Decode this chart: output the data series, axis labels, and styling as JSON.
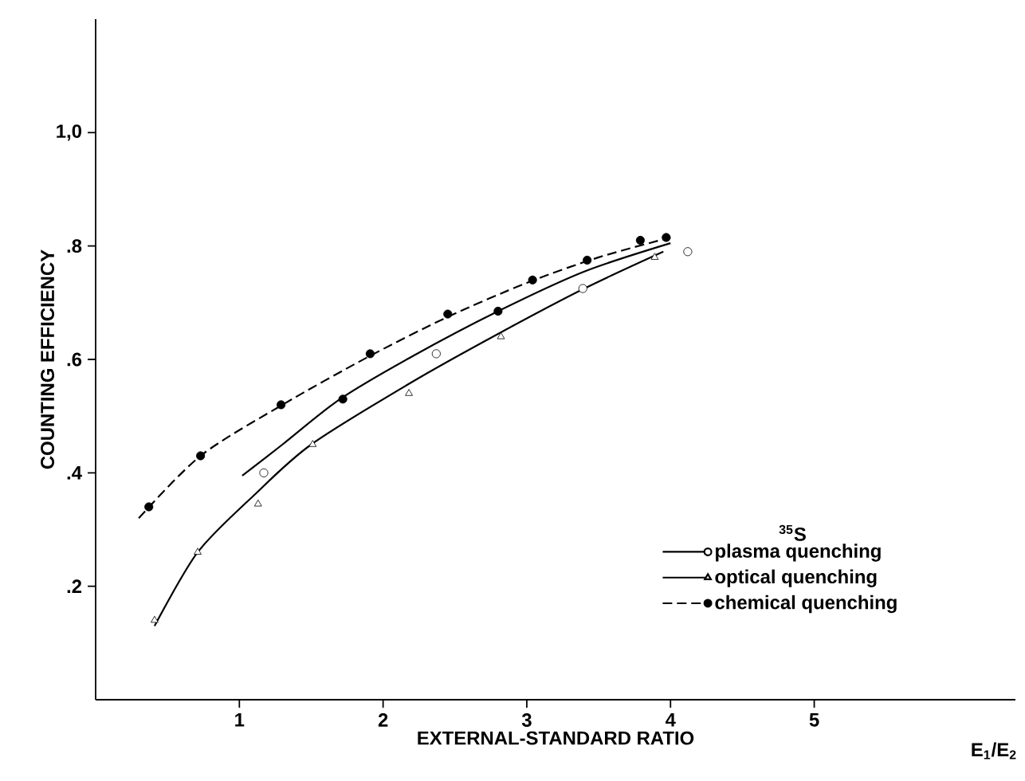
{
  "chart_data": {
    "type": "line",
    "xlabel": "EXTERNAL-STANDARD RATIO",
    "ylabel": "COUNTING EFFICIENCY",
    "legend_title": "$^{35}$S",
    "annotations": [
      "E$_{1}$/E$_{2}$"
    ],
    "xlim": [
      0,
      6.4
    ],
    "ylim": [
      0,
      1.2
    ],
    "xticks": [
      1,
      2,
      3,
      4,
      5
    ],
    "yticks": [
      {
        "value": 0.2,
        "label": ".2"
      },
      {
        "value": 0.4,
        "label": ".4"
      },
      {
        "value": 0.6,
        "label": ".6"
      },
      {
        "value": 0.8,
        "label": ".8"
      },
      {
        "value": 1.0,
        "label": "1,0"
      }
    ],
    "grid": false,
    "legend": "right",
    "series": [
      {
        "name": "plasma quenching",
        "type": "scatter",
        "color": "#ffffff",
        "line_style": "solid",
        "marker": "circle",
        "x": [
          1.17,
          2.37,
          3.39,
          4.12
        ],
        "values": [
          0.4,
          0.61,
          0.725,
          0.79
        ]
      },
      {
        "name": "optical quenching",
        "type": "scatter",
        "color": "#ffffff",
        "line_style": "solid",
        "marker": "triangle",
        "x": [
          0.41,
          0.71,
          1.13,
          1.51,
          2.18,
          2.82,
          3.89
        ],
        "values": [
          0.14,
          0.26,
          0.345,
          0.45,
          0.54,
          0.64,
          0.78
        ]
      },
      {
        "name": "chemical quenching",
        "type": "scatter",
        "color": "#000000",
        "line_style": "dashed",
        "marker": "circle",
        "x": [
          0.37,
          0.73,
          1.29,
          1.72,
          1.91,
          2.45,
          2.8,
          3.04,
          3.42,
          3.79,
          3.97
        ],
        "values": [
          0.34,
          0.43,
          0.52,
          0.53,
          0.61,
          0.68,
          0.685,
          0.74,
          0.775,
          0.81,
          0.815
        ]
      },
      {
        "color": "#000000",
        "line_style": "solid",
        "x": [
          1.02,
          1.3,
          1.7,
          2.2,
          2.8,
          3.4,
          4.0
        ],
        "values": [
          0.395,
          0.45,
          0.53,
          0.605,
          0.685,
          0.755,
          0.805
        ]
      },
      {
        "color": "#000000",
        "line_style": "solid",
        "x": [
          0.41,
          0.71,
          1.1,
          1.5,
          2.2,
          2.8,
          3.4,
          3.95
        ],
        "values": [
          0.13,
          0.26,
          0.36,
          0.45,
          0.56,
          0.645,
          0.725,
          0.79
        ]
      },
      {
        "color": "#000000",
        "line_style": "dashed",
        "x": [
          0.3,
          0.73,
          1.3,
          1.9,
          2.45,
          3.0,
          3.5,
          4.0
        ],
        "values": [
          0.32,
          0.43,
          0.52,
          0.605,
          0.675,
          0.735,
          0.78,
          0.815
        ]
      }
    ]
  }
}
